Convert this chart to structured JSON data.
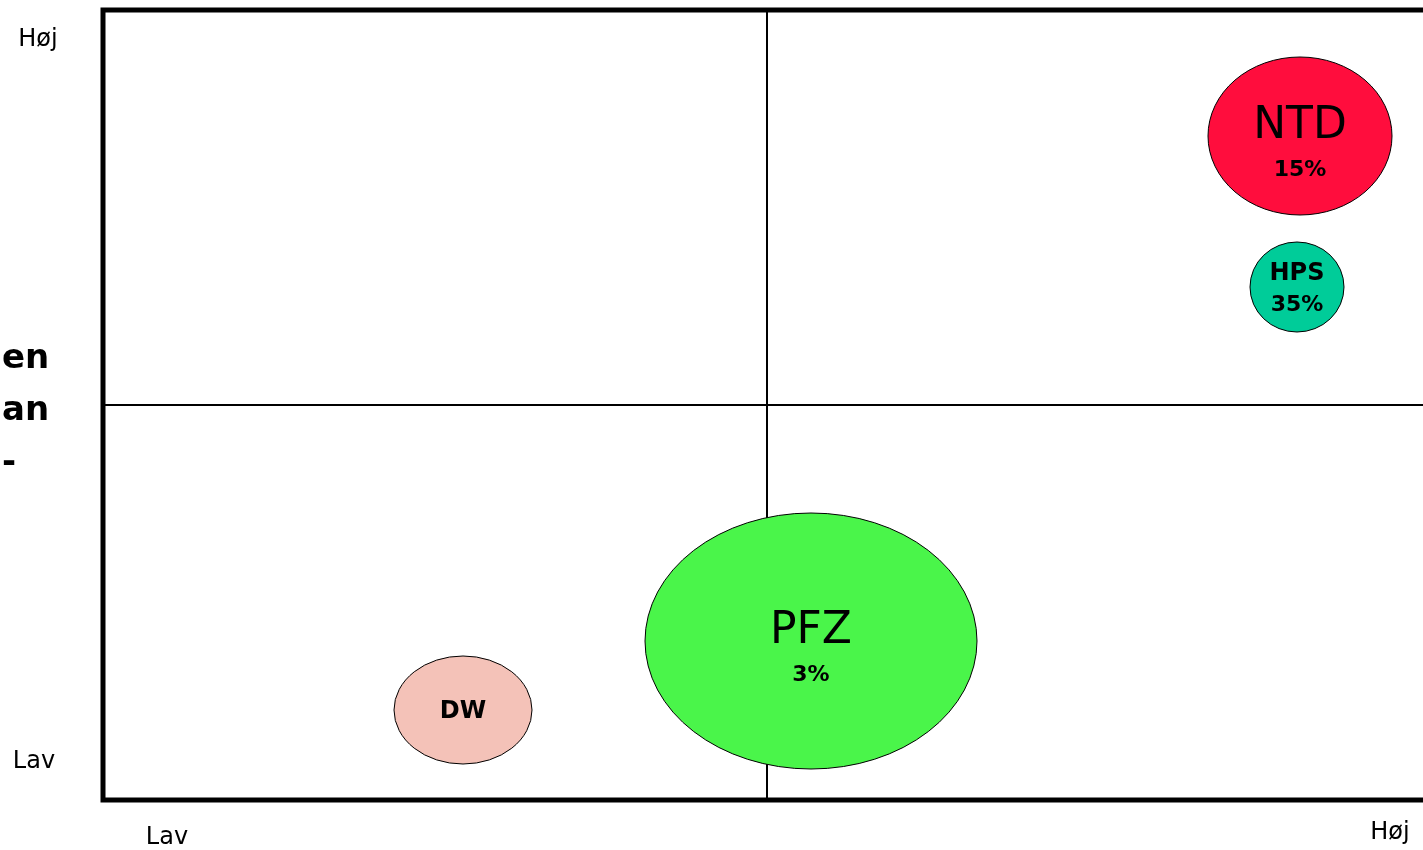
{
  "chart_data": {
    "type": "other",
    "ylabel": "en\nan\n-",
    "categories": [
      "NTD",
      "HPS",
      "PFZ",
      "DW"
    ],
    "values": [
      15,
      35,
      3,
      null
    ],
    "value_labels": [
      "15%",
      "35%",
      "3%",
      null
    ],
    "colors": [
      "#ff0d3d",
      "#00cc99",
      "#4af54a",
      "#f4c2b8"
    ],
    "annotations": [
      "Høj",
      "Lav",
      "Lav",
      "Høj"
    ]
  }
}
